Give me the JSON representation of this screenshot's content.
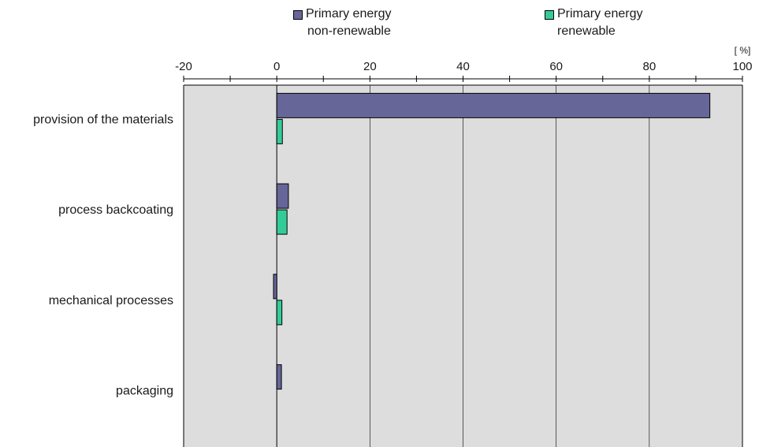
{
  "chart_data": {
    "type": "bar",
    "orientation": "horizontal",
    "categories": [
      "provision of  the materials",
      "process backcoating",
      "mechanical processes",
      "packaging"
    ],
    "series": [
      {
        "name": "Primary energy non-renewable",
        "name_lines": [
          "Primary energy",
          "non-renewable"
        ],
        "color": "#666699",
        "values": [
          93,
          2.5,
          -0.7,
          1.0
        ]
      },
      {
        "name": "Primary energy renewable",
        "name_lines": [
          "Primary energy",
          "renewable"
        ],
        "color": "#33CC99",
        "values": [
          1.2,
          2.2,
          1.1,
          null
        ]
      }
    ],
    "xlim": [
      -20,
      100
    ],
    "xticks": [
      -20,
      0,
      20,
      40,
      60,
      80,
      100
    ],
    "unit_label": "[ %]",
    "grid": true,
    "plot_background": "#DDDDDD",
    "legend_position": "top"
  }
}
